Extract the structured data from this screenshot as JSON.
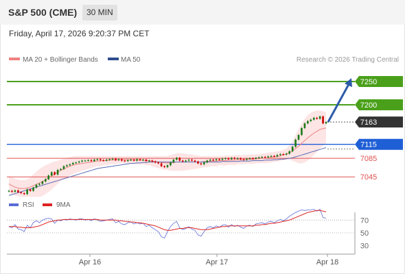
{
  "header": {
    "symbol": "S&P 500 (CME)",
    "interval": "30 MIN",
    "timestamp": "Friday, April 17, 2026 9:20:37 PM CET"
  },
  "legend": {
    "ma20": "MA 20 + Bollinger Bands",
    "ma50": "MA 50",
    "credit": "Research © 2026 Trading Central",
    "rsi": "RSI",
    "rsi_ma": "9MA"
  },
  "colors": {
    "up": "#1a7a1a",
    "down": "#cc0000",
    "ma20": "#f08080",
    "band_fill": "#fde0e0",
    "ma50": "#5a6bb5",
    "resistance": "#4aa01a",
    "support_blue": "#1f5fd6",
    "support_red": "#e05050",
    "current": "#333333",
    "rsi": "#5a6bd6",
    "rsi_ma": "#dd2222"
  },
  "chart_data": {
    "type": "candlestick",
    "price_axis": {
      "min": 7010,
      "max": 7278
    },
    "x_ticks": [
      "Apr 16",
      "Apr 17",
      "Apr 18"
    ],
    "levels": [
      {
        "value": 7250,
        "label": "7250",
        "kind": "resistance"
      },
      {
        "value": 7200,
        "label": "7200",
        "kind": "resistance"
      },
      {
        "value": 7163,
        "label": "7163",
        "kind": "current"
      },
      {
        "value": 7115,
        "label": "7115",
        "kind": "pivot"
      },
      {
        "value": 7085,
        "label": "7085",
        "kind": "support"
      },
      {
        "value": 7045,
        "label": "7045",
        "kind": "support"
      }
    ],
    "close": [
      7015,
      7013,
      7016,
      7012,
      7010,
      7008,
      7018,
      7015,
      7022,
      7028,
      7030,
      7035,
      7040,
      7048,
      7055,
      7050,
      7060,
      7062,
      7068,
      7070,
      7072,
      7075,
      7076,
      7078,
      7080,
      7080,
      7081,
      7079,
      7082,
      7083,
      7081,
      7080,
      7082,
      7083,
      7084,
      7081,
      7083,
      7080,
      7079,
      7081,
      7082,
      7080,
      7083,
      7081,
      7082,
      7079,
      7080,
      7078,
      7076,
      7074,
      7068,
      7066,
      7070,
      7076,
      7082,
      7086,
      7080,
      7078,
      7080,
      7082,
      7080,
      7078,
      7074,
      7072,
      7076,
      7080,
      7082,
      7081,
      7083,
      7082,
      7084,
      7085,
      7083,
      7086,
      7084,
      7085,
      7083,
      7082,
      7084,
      7085,
      7084,
      7086,
      7087,
      7088,
      7087,
      7089,
      7090,
      7089,
      7092,
      7094,
      7093,
      7095,
      7100,
      7110,
      7125,
      7135,
      7150,
      7160,
      7165,
      7168,
      7172,
      7170,
      7175,
      7160,
      7163
    ],
    "ma20": [
      7030,
      7026,
      7023,
      7021,
      7020,
      7020,
      7021,
      7023,
      7026,
      7029,
      7032,
      7035,
      7039,
      7043,
      7047,
      7051,
      7055,
      7059,
      7062,
      7065,
      7068,
      7070,
      7072,
      7073,
      7074,
      7075,
      7076,
      7077,
      7078,
      7079,
      7079,
      7080,
      7080,
      7081,
      7081,
      7081,
      7082,
      7082,
      7082,
      7082,
      7082,
      7082,
      7081,
      7081,
      7081,
      7080,
      7080,
      7079,
      7078,
      7077,
      7076,
      7075,
      7075,
      7075,
      7076,
      7077,
      7077,
      7077,
      7077,
      7077,
      7077,
      7077,
      7077,
      7077,
      7078,
      7078,
      7079,
      7079,
      7079,
      7080,
      7080,
      7080,
      7081,
      7081,
      7081,
      7082,
      7082,
      7082,
      7083,
      7083,
      7083,
      7084,
      7084,
      7085,
      7085,
      7086,
      7087,
      7088,
      7089,
      7090,
      7092,
      7094,
      7097,
      7101,
      7106,
      7111,
      7117,
      7123,
      7129,
      7134,
      7139,
      7143,
      7147,
      7149,
      7150
    ],
    "bb_upper": [
      7048,
      7044,
      7041,
      7039,
      7038,
      7038,
      7040,
      7044,
      7050,
      7056,
      7062,
      7066,
      7070,
      7073,
      7076,
      7078,
      7080,
      7082,
      7084,
      7086,
      7088,
      7089,
      7090,
      7090,
      7090,
      7090,
      7090,
      7090,
      7090,
      7090,
      7090,
      7090,
      7090,
      7090,
      7090,
      7090,
      7090,
      7090,
      7090,
      7090,
      7090,
      7090,
      7090,
      7090,
      7090,
      7090,
      7090,
      7090,
      7090,
      7090,
      7090,
      7090,
      7090,
      7092,
      7094,
      7096,
      7096,
      7096,
      7095,
      7094,
      7093,
      7092,
      7091,
      7090,
      7090,
      7090,
      7090,
      7090,
      7090,
      7090,
      7090,
      7091,
      7091,
      7091,
      7092,
      7092,
      7092,
      7092,
      7093,
      7093,
      7093,
      7094,
      7094,
      7095,
      7096,
      7097,
      7098,
      7099,
      7100,
      7101,
      7103,
      7106,
      7112,
      7122,
      7135,
      7148,
      7160,
      7170,
      7178,
      7183,
      7186,
      7188,
      7188,
      7186,
      7184
    ],
    "bb_lower": [
      7012,
      7008,
      7005,
      7003,
      7002,
      7002,
      7002,
      7002,
      7002,
      7002,
      7002,
      7004,
      7008,
      7013,
      7018,
      7024,
      7030,
      7036,
      7040,
      7044,
      7048,
      7051,
      7054,
      7056,
      7058,
      7060,
      7062,
      7064,
      7066,
      7068,
      7068,
      7070,
      7070,
      7072,
      7072,
      7072,
      7074,
      7074,
      7074,
      7074,
      7074,
      7074,
      7072,
      7072,
      7072,
      7070,
      7070,
      7068,
      7066,
      7064,
      7062,
      7060,
      7060,
      7058,
      7058,
      7058,
      7058,
      7058,
      7059,
      7060,
      7061,
      7062,
      7063,
      7064,
      7066,
      7066,
      7068,
      7068,
      7068,
      7070,
      7070,
      7069,
      7071,
      7071,
      7070,
      7072,
      7072,
      7072,
      7073,
      7073,
      7073,
      7074,
      7074,
      7075,
      7074,
      7075,
      7076,
      7077,
      7078,
      7079,
      7081,
      7082,
      7082,
      7080,
      7077,
      7074,
      7074,
      7076,
      7080,
      7085,
      7092,
      7098,
      7106,
      7112,
      7116
    ],
    "ma50": [
      7005,
      7007,
      7009,
      7011,
      7013,
      7015,
      7017,
      7019,
      7021,
      7023,
      7025,
      7027,
      7029,
      7031,
      7033,
      7035,
      7037,
      7039,
      7041,
      7043,
      7045,
      7047,
      7049,
      7051,
      7053,
      7055,
      7057,
      7059,
      7061,
      7063,
      7064,
      7065,
      7066,
      7067,
      7068,
      7069,
      7070,
      7071,
      7072,
      7073,
      7074,
      7074,
      7075,
      7075,
      7076,
      7076,
      7077,
      7077,
      7077,
      7077,
      7077,
      7077,
      7077,
      7077,
      7077,
      7077,
      7077,
      7077,
      7077,
      7077,
      7077,
      7077,
      7077,
      7077,
      7077,
      7077,
      7077,
      7077,
      7077,
      7077,
      7078,
      7078,
      7078,
      7078,
      7078,
      7078,
      7079,
      7079,
      7079,
      7079,
      7080,
      7080,
      7080,
      7080,
      7081,
      7081,
      7081,
      7082,
      7082,
      7083,
      7083,
      7084,
      7085,
      7086,
      7088,
      7090,
      7092,
      7094,
      7096,
      7098,
      7100,
      7102,
      7104,
      7106,
      7108
    ],
    "rsi": {
      "ticks": [
        70,
        50,
        30
      ],
      "range": [
        20,
        80
      ],
      "rsi": [
        60,
        58,
        63,
        56,
        55,
        52,
        62,
        58,
        66,
        69,
        66,
        70,
        72,
        73,
        72,
        65,
        70,
        69,
        71,
        70,
        72,
        71,
        70,
        72,
        72,
        70,
        71,
        69,
        72,
        70,
        68,
        69,
        70,
        71,
        72,
        66,
        68,
        64,
        63,
        66,
        67,
        64,
        66,
        64,
        65,
        60,
        62,
        58,
        55,
        52,
        44,
        42,
        52,
        60,
        65,
        68,
        58,
        55,
        57,
        60,
        56,
        54,
        47,
        45,
        52,
        58,
        60,
        58,
        61,
        59,
        62,
        63,
        59,
        63,
        60,
        62,
        59,
        57,
        61,
        62,
        60,
        64,
        65,
        66,
        64,
        67,
        68,
        66,
        69,
        71,
        69,
        72,
        76,
        79,
        82,
        84,
        86,
        85,
        86,
        86,
        87,
        84,
        87,
        74,
        73
      ],
      "ma": [
        60,
        60,
        60,
        59,
        59,
        58,
        58,
        58,
        59,
        60,
        61,
        63,
        65,
        67,
        68,
        69,
        70,
        70,
        71,
        71,
        71,
        71,
        71,
        71,
        71,
        71,
        71,
        71,
        71,
        71,
        70,
        70,
        70,
        70,
        70,
        70,
        69,
        69,
        68,
        68,
        67,
        67,
        66,
        66,
        65,
        64,
        63,
        62,
        61,
        59,
        57,
        55,
        54,
        54,
        55,
        56,
        57,
        57,
        58,
        58,
        58,
        57,
        56,
        55,
        55,
        55,
        56,
        57,
        58,
        59,
        60,
        60,
        61,
        61,
        61,
        61,
        61,
        61,
        61,
        61,
        61,
        62,
        62,
        63,
        63,
        64,
        65,
        65,
        66,
        67,
        68,
        69,
        70,
        72,
        74,
        76,
        78,
        80,
        82,
        83,
        84,
        85,
        85,
        84,
        83
      ]
    }
  }
}
